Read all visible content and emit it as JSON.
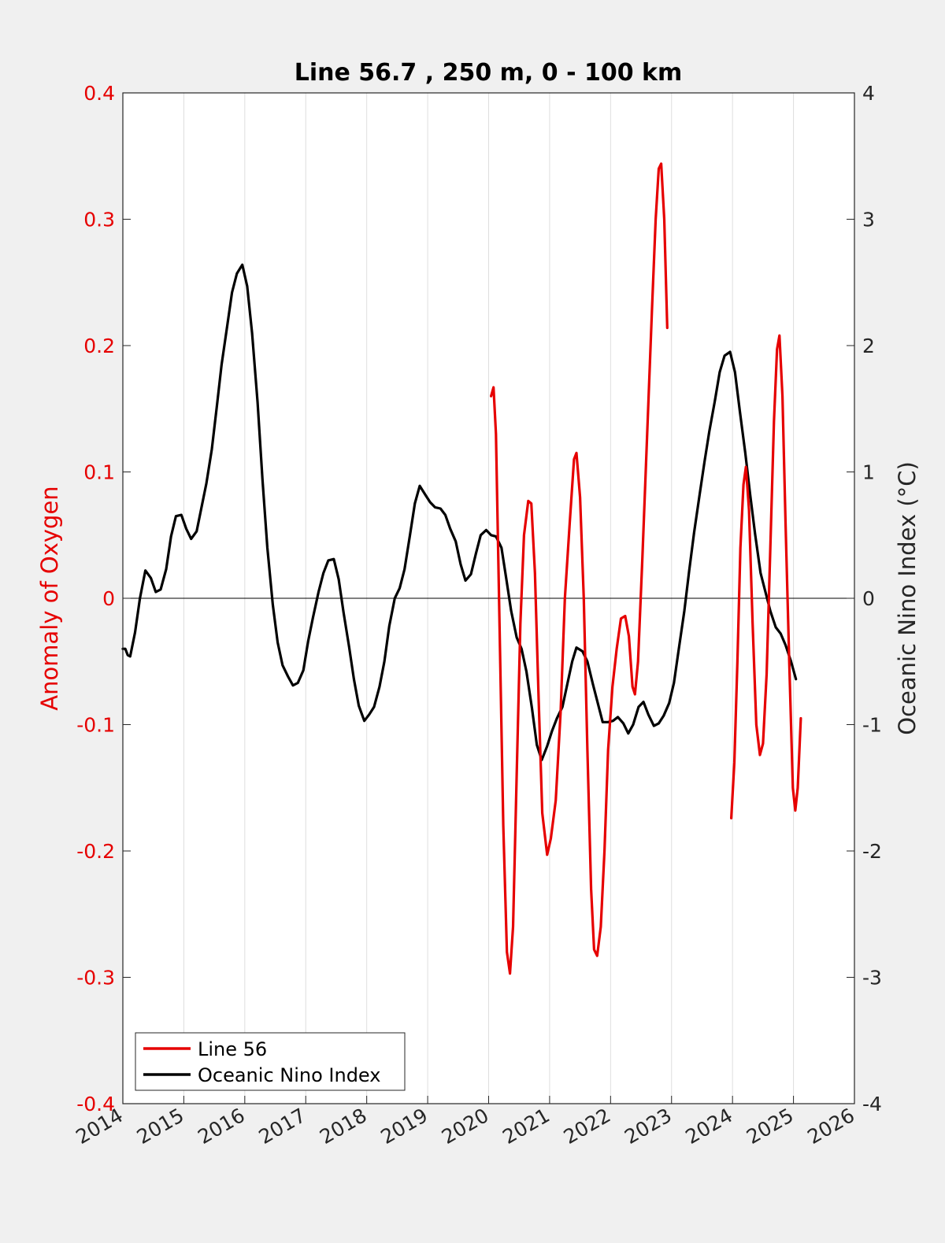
{
  "chart_data": {
    "type": "line",
    "title": "Line 56.7 , 250 m, 0 - 100 km",
    "xlabel": "",
    "ylabel_left": "Anomaly of Oxygen",
    "ylabel_right": "Oceanic Nino Index (°C)",
    "xlim": [
      2014,
      2026
    ],
    "ylim_left": [
      -0.4,
      0.4
    ],
    "ylim_right": [
      -4,
      4
    ],
    "x_ticks": [
      "2014",
      "2015",
      "2016",
      "2017",
      "2018",
      "2019",
      "2020",
      "2021",
      "2022",
      "2023",
      "2024",
      "2025",
      "2026"
    ],
    "y_left_ticks": [
      "-0.4",
      "-0.3",
      "-0.2",
      "-0.1",
      "0",
      "0.1",
      "0.2",
      "0.3",
      "0.4"
    ],
    "y_right_ticks": [
      "-4",
      "-3",
      "-2",
      "-1",
      "0",
      "1",
      "2",
      "3",
      "4"
    ],
    "vertical_grid": true,
    "zero_line": true,
    "legend_position": "bottom-left",
    "colors": {
      "line56": "#e60000",
      "oni": "#000000",
      "left_axis": "#e60000",
      "right_axis": "#262626"
    },
    "series": [
      {
        "name": "Line 56",
        "axis": "left",
        "color": "#e60000",
        "segments": [
          [
            [
              2020.04,
              0.16
            ],
            [
              2020.08,
              0.167
            ],
            [
              2020.12,
              0.13
            ],
            [
              2020.17,
              0.0
            ],
            [
              2020.24,
              -0.18
            ],
            [
              2020.3,
              -0.28
            ],
            [
              2020.35,
              -0.297
            ],
            [
              2020.4,
              -0.26
            ],
            [
              2020.46,
              -0.14
            ],
            [
              2020.52,
              -0.02
            ],
            [
              2020.58,
              0.05
            ],
            [
              2020.65,
              0.077
            ],
            [
              2020.7,
              0.075
            ],
            [
              2020.76,
              0.02
            ],
            [
              2020.82,
              -0.08
            ],
            [
              2020.88,
              -0.17
            ],
            [
              2020.96,
              -0.203
            ],
            [
              2021.02,
              -0.19
            ],
            [
              2021.1,
              -0.16
            ],
            [
              2021.18,
              -0.09
            ],
            [
              2021.25,
              0.0
            ],
            [
              2021.33,
              0.06
            ],
            [
              2021.4,
              0.11
            ],
            [
              2021.44,
              0.115
            ],
            [
              2021.5,
              0.08
            ],
            [
              2021.56,
              0.0
            ],
            [
              2021.62,
              -0.12
            ],
            [
              2021.68,
              -0.23
            ],
            [
              2021.73,
              -0.278
            ],
            [
              2021.78,
              -0.283
            ],
            [
              2021.84,
              -0.26
            ],
            [
              2021.9,
              -0.2
            ],
            [
              2021.96,
              -0.12
            ],
            [
              2022.03,
              -0.07
            ],
            [
              2022.1,
              -0.04
            ],
            [
              2022.17,
              -0.016
            ],
            [
              2022.24,
              -0.014
            ],
            [
              2022.3,
              -0.03
            ],
            [
              2022.36,
              -0.07
            ],
            [
              2022.4,
              -0.076
            ],
            [
              2022.45,
              -0.05
            ],
            [
              2022.52,
              0.03
            ],
            [
              2022.6,
              0.13
            ],
            [
              2022.68,
              0.23
            ],
            [
              2022.74,
              0.3
            ],
            [
              2022.79,
              0.34
            ],
            [
              2022.83,
              0.344
            ],
            [
              2022.88,
              0.3
            ],
            [
              2022.93,
              0.214
            ]
          ],
          [
            [
              2023.98,
              -0.174
            ],
            [
              2024.03,
              -0.13
            ],
            [
              2024.08,
              -0.05
            ],
            [
              2024.13,
              0.04
            ],
            [
              2024.18,
              0.09
            ],
            [
              2024.22,
              0.104
            ],
            [
              2024.27,
              0.07
            ],
            [
              2024.33,
              -0.02
            ],
            [
              2024.39,
              -0.1
            ],
            [
              2024.45,
              -0.124
            ],
            [
              2024.5,
              -0.115
            ],
            [
              2024.56,
              -0.06
            ],
            [
              2024.62,
              0.04
            ],
            [
              2024.68,
              0.14
            ],
            [
              2024.73,
              0.197
            ],
            [
              2024.77,
              0.208
            ],
            [
              2024.82,
              0.16
            ],
            [
              2024.87,
              0.06
            ],
            [
              2024.93,
              -0.05
            ],
            [
              2024.99,
              -0.15
            ],
            [
              2025.03,
              -0.168
            ],
            [
              2025.07,
              -0.15
            ],
            [
              2025.12,
              -0.095
            ]
          ]
        ]
      },
      {
        "name": "Oceanic Nino Index",
        "axis": "right",
        "color": "#000000",
        "segments": [
          [
            [
              2014.0,
              -0.4
            ],
            [
              2014.04,
              -0.4
            ],
            [
              2014.08,
              -0.45
            ],
            [
              2014.12,
              -0.46
            ],
            [
              2014.2,
              -0.27
            ],
            [
              2014.28,
              0.0
            ],
            [
              2014.37,
              0.22
            ],
            [
              2014.46,
              0.16
            ],
            [
              2014.54,
              0.05
            ],
            [
              2014.62,
              0.07
            ],
            [
              2014.71,
              0.23
            ],
            [
              2014.79,
              0.49
            ],
            [
              2014.87,
              0.65
            ],
            [
              2014.96,
              0.66
            ],
            [
              2015.04,
              0.55
            ],
            [
              2015.12,
              0.47
            ],
            [
              2015.21,
              0.53
            ],
            [
              2015.29,
              0.72
            ],
            [
              2015.37,
              0.91
            ],
            [
              2015.46,
              1.18
            ],
            [
              2015.54,
              1.51
            ],
            [
              2015.62,
              1.85
            ],
            [
              2015.71,
              2.15
            ],
            [
              2015.79,
              2.42
            ],
            [
              2015.87,
              2.57
            ],
            [
              2015.96,
              2.64
            ],
            [
              2016.04,
              2.47
            ],
            [
              2016.12,
              2.1
            ],
            [
              2016.21,
              1.55
            ],
            [
              2016.29,
              0.94
            ],
            [
              2016.37,
              0.4
            ],
            [
              2016.46,
              -0.05
            ],
            [
              2016.54,
              -0.35
            ],
            [
              2016.62,
              -0.53
            ],
            [
              2016.71,
              -0.62
            ],
            [
              2016.79,
              -0.69
            ],
            [
              2016.87,
              -0.67
            ],
            [
              2016.96,
              -0.57
            ],
            [
              2017.04,
              -0.34
            ],
            [
              2017.12,
              -0.15
            ],
            [
              2017.21,
              0.05
            ],
            [
              2017.29,
              0.2
            ],
            [
              2017.37,
              0.3
            ],
            [
              2017.46,
              0.31
            ],
            [
              2017.54,
              0.15
            ],
            [
              2017.62,
              -0.11
            ],
            [
              2017.71,
              -0.38
            ],
            [
              2017.79,
              -0.64
            ],
            [
              2017.87,
              -0.85
            ],
            [
              2017.96,
              -0.97
            ],
            [
              2018.04,
              -0.92
            ],
            [
              2018.12,
              -0.86
            ],
            [
              2018.21,
              -0.7
            ],
            [
              2018.29,
              -0.5
            ],
            [
              2018.37,
              -0.22
            ],
            [
              2018.46,
              0.0
            ],
            [
              2018.54,
              0.08
            ],
            [
              2018.62,
              0.23
            ],
            [
              2018.71,
              0.5
            ],
            [
              2018.79,
              0.75
            ],
            [
              2018.87,
              0.89
            ],
            [
              2018.96,
              0.82
            ],
            [
              2019.04,
              0.76
            ],
            [
              2019.12,
              0.72
            ],
            [
              2019.21,
              0.71
            ],
            [
              2019.29,
              0.66
            ],
            [
              2019.37,
              0.55
            ],
            [
              2019.46,
              0.45
            ],
            [
              2019.54,
              0.27
            ],
            [
              2019.62,
              0.14
            ],
            [
              2019.71,
              0.19
            ],
            [
              2019.79,
              0.35
            ],
            [
              2019.87,
              0.5
            ],
            [
              2019.96,
              0.54
            ],
            [
              2020.04,
              0.5
            ],
            [
              2020.12,
              0.49
            ],
            [
              2020.21,
              0.4
            ],
            [
              2020.29,
              0.15
            ],
            [
              2020.37,
              -0.1
            ],
            [
              2020.46,
              -0.31
            ],
            [
              2020.54,
              -0.4
            ],
            [
              2020.62,
              -0.58
            ],
            [
              2020.71,
              -0.87
            ],
            [
              2020.79,
              -1.16
            ],
            [
              2020.87,
              -1.28
            ],
            [
              2020.96,
              -1.17
            ],
            [
              2021.04,
              -1.05
            ],
            [
              2021.12,
              -0.95
            ],
            [
              2021.21,
              -0.86
            ],
            [
              2021.29,
              -0.68
            ],
            [
              2021.37,
              -0.5
            ],
            [
              2021.44,
              -0.39
            ],
            [
              2021.54,
              -0.42
            ],
            [
              2021.62,
              -0.5
            ],
            [
              2021.71,
              -0.68
            ],
            [
              2021.79,
              -0.83
            ],
            [
              2021.87,
              -0.98
            ],
            [
              2021.96,
              -0.98
            ],
            [
              2022.04,
              -0.97
            ],
            [
              2022.12,
              -0.94
            ],
            [
              2022.21,
              -0.99
            ],
            [
              2022.29,
              -1.07
            ],
            [
              2022.37,
              -1.0
            ],
            [
              2022.46,
              -0.86
            ],
            [
              2022.54,
              -0.82
            ],
            [
              2022.62,
              -0.92
            ],
            [
              2022.71,
              -1.01
            ],
            [
              2022.79,
              -0.99
            ],
            [
              2022.87,
              -0.93
            ],
            [
              2022.96,
              -0.83
            ],
            [
              2023.04,
              -0.67
            ],
            [
              2023.12,
              -0.4
            ],
            [
              2023.21,
              -0.1
            ],
            [
              2023.29,
              0.22
            ],
            [
              2023.37,
              0.52
            ],
            [
              2023.46,
              0.82
            ],
            [
              2023.54,
              1.08
            ],
            [
              2023.62,
              1.32
            ],
            [
              2023.71,
              1.56
            ],
            [
              2023.79,
              1.79
            ],
            [
              2023.87,
              1.92
            ],
            [
              2023.96,
              1.95
            ],
            [
              2024.04,
              1.79
            ],
            [
              2024.12,
              1.48
            ],
            [
              2024.21,
              1.15
            ],
            [
              2024.29,
              0.82
            ],
            [
              2024.37,
              0.51
            ],
            [
              2024.46,
              0.2
            ],
            [
              2024.54,
              0.05
            ],
            [
              2024.62,
              -0.1
            ],
            [
              2024.71,
              -0.23
            ],
            [
              2024.79,
              -0.28
            ],
            [
              2024.87,
              -0.37
            ],
            [
              2024.96,
              -0.5
            ],
            [
              2025.04,
              -0.64
            ]
          ]
        ]
      }
    ]
  }
}
